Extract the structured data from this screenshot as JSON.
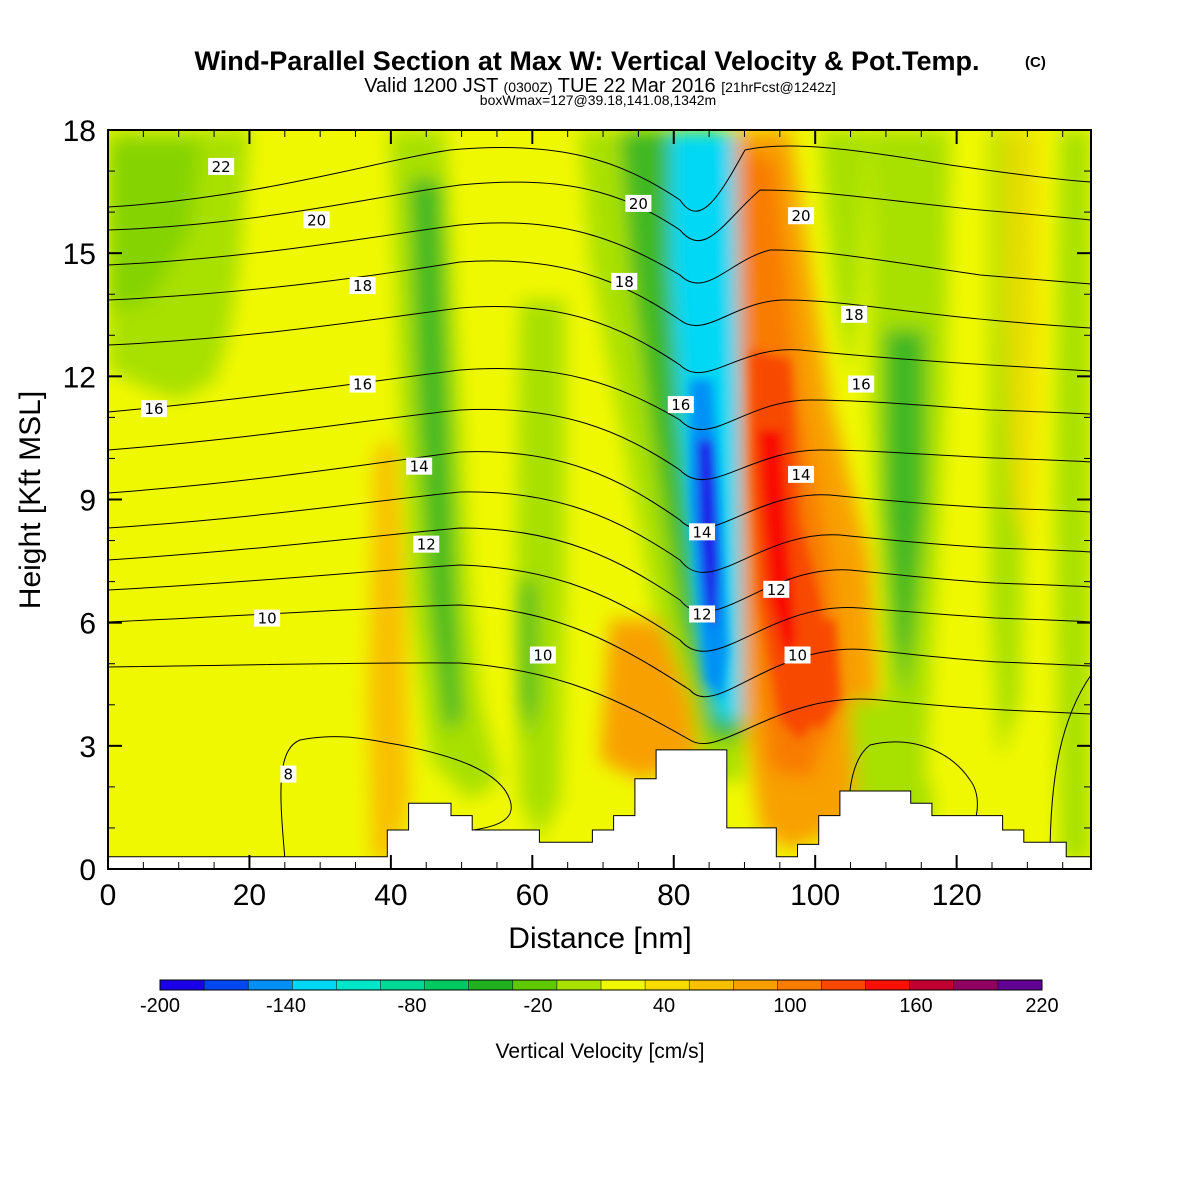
{
  "chart_data": {
    "type": "heatmap",
    "title": "Wind-Parallel Section at Max W: Vertical Velocity & Pot.Temp.",
    "title_mark": "(C)",
    "subtitle_valid": "Valid 1200 JST",
    "subtitle_utc": "(0300Z)",
    "subtitle_date": "TUE 22 Mar 2016",
    "subtitle_fcst": "[21hrFcst@1242z]",
    "subtitle2": "boxWmax=127@39.18,141.08,1342m",
    "xlabel": "Distance [nm]",
    "ylabel": "Height [Kft MSL]",
    "xlim": [
      0,
      139
    ],
    "ylim": [
      0,
      18
    ],
    "xticks": [
      "0",
      "20",
      "40",
      "60",
      "80",
      "100",
      "120"
    ],
    "yticks": [
      "0",
      "3",
      "6",
      "9",
      "12",
      "15",
      "18"
    ],
    "colorbar": {
      "label": "Vertical Velocity [cm/s]",
      "tick_labels": [
        "-200",
        "-140",
        "-80",
        "-20",
        "40",
        "100",
        "160",
        "220"
      ],
      "colors": [
        "#1a00e8",
        "#0047f0",
        "#0090f5",
        "#00d8f5",
        "#00e6c8",
        "#00d898",
        "#00c860",
        "#20b020",
        "#60c800",
        "#a8e000",
        "#f0f800",
        "#f8dc00",
        "#f8c000",
        "#f8a000",
        "#f87c00",
        "#f84800",
        "#f81000",
        "#c00030",
        "#900060",
        "#600090"
      ]
    },
    "velocity_features": [
      {
        "kind": "downdraft core",
        "x_nm": 84,
        "z_kft": 8,
        "w_cms": -200
      },
      {
        "kind": "updraft core",
        "x_nm": 93,
        "z_kft": 8,
        "w_cms": 150
      },
      {
        "kind": "updraft",
        "x_nm": 97,
        "z_kft": 5,
        "w_cms": 110
      },
      {
        "kind": "updraft",
        "x_nm": 76,
        "z_kft": 3.5,
        "w_cms": 60
      },
      {
        "kind": "downdraft band",
        "x_nm": 114,
        "z_kft": 9,
        "w_cms": -60
      },
      {
        "kind": "downdraft band",
        "x_nm": 45,
        "z_kft": 9,
        "w_cms": -50
      },
      {
        "kind": "downdraft band",
        "x_nm": 59,
        "z_kft": 8,
        "w_cms": -40
      }
    ],
    "theta_contour_labels": [
      {
        "text": "22",
        "x": 16,
        "z": 17.1
      },
      {
        "text": "20",
        "x": 29.5,
        "z": 15.8
      },
      {
        "text": "18",
        "x": 36,
        "z": 14.2
      },
      {
        "text": "16",
        "x": 36,
        "z": 11.8
      },
      {
        "text": "16",
        "x": 6.5,
        "z": 11.2
      },
      {
        "text": "14",
        "x": 44,
        "z": 9.8
      },
      {
        "text": "12",
        "x": 45,
        "z": 7.9
      },
      {
        "text": "10",
        "x": 22.5,
        "z": 6.1
      },
      {
        "text": "10",
        "x": 61.5,
        "z": 5.2
      },
      {
        "text": "8",
        "x": 25.5,
        "z": 2.3
      },
      {
        "text": "20",
        "x": 75,
        "z": 16.2
      },
      {
        "text": "18",
        "x": 73,
        "z": 14.3
      },
      {
        "text": "16",
        "x": 81,
        "z": 11.3
      },
      {
        "text": "14",
        "x": 84,
        "z": 8.2
      },
      {
        "text": "12",
        "x": 84,
        "z": 6.2
      },
      {
        "text": "20",
        "x": 98,
        "z": 15.9
      },
      {
        "text": "18",
        "x": 105.5,
        "z": 13.5
      },
      {
        "text": "16",
        "x": 106.5,
        "z": 11.8
      },
      {
        "text": "14",
        "x": 98,
        "z": 9.6
      },
      {
        "text": "12",
        "x": 94.5,
        "z": 6.8
      },
      {
        "text": "10",
        "x": 97.5,
        "z": 5.2
      }
    ],
    "terrain_kft": [
      {
        "x": 0,
        "z": 0.3
      },
      {
        "x": 39.5,
        "z": 0.3
      },
      {
        "x": 39.5,
        "z": 0.95
      },
      {
        "x": 42.5,
        "z": 0.95
      },
      {
        "x": 42.5,
        "z": 1.6
      },
      {
        "x": 48.5,
        "z": 1.6
      },
      {
        "x": 48.5,
        "z": 1.3
      },
      {
        "x": 51.5,
        "z": 1.3
      },
      {
        "x": 51.5,
        "z": 0.95
      },
      {
        "x": 61,
        "z": 0.95
      },
      {
        "x": 61,
        "z": 0.65
      },
      {
        "x": 68.5,
        "z": 0.65
      },
      {
        "x": 68.5,
        "z": 0.95
      },
      {
        "x": 71.5,
        "z": 0.95
      },
      {
        "x": 71.5,
        "z": 1.3
      },
      {
        "x": 74.5,
        "z": 1.3
      },
      {
        "x": 74.5,
        "z": 2.2
      },
      {
        "x": 77.5,
        "z": 2.2
      },
      {
        "x": 77.5,
        "z": 2.9
      },
      {
        "x": 87.5,
        "z": 2.9
      },
      {
        "x": 87.5,
        "z": 1.0
      },
      {
        "x": 94.5,
        "z": 1.0
      },
      {
        "x": 94.5,
        "z": 0.3
      },
      {
        "x": 97.5,
        "z": 0.3
      },
      {
        "x": 97.5,
        "z": 0.6
      },
      {
        "x": 100.5,
        "z": 0.6
      },
      {
        "x": 100.5,
        "z": 1.3
      },
      {
        "x": 103.5,
        "z": 1.3
      },
      {
        "x": 103.5,
        "z": 1.9
      },
      {
        "x": 113.5,
        "z": 1.9
      },
      {
        "x": 113.5,
        "z": 1.6
      },
      {
        "x": 116.5,
        "z": 1.6
      },
      {
        "x": 116.5,
        "z": 1.3
      },
      {
        "x": 126.5,
        "z": 1.3
      },
      {
        "x": 126.5,
        "z": 0.95
      },
      {
        "x": 129.5,
        "z": 0.95
      },
      {
        "x": 129.5,
        "z": 0.65
      },
      {
        "x": 135.5,
        "z": 0.65
      },
      {
        "x": 135.5,
        "z": 0.3
      },
      {
        "x": 139,
        "z": 0.3
      }
    ]
  }
}
